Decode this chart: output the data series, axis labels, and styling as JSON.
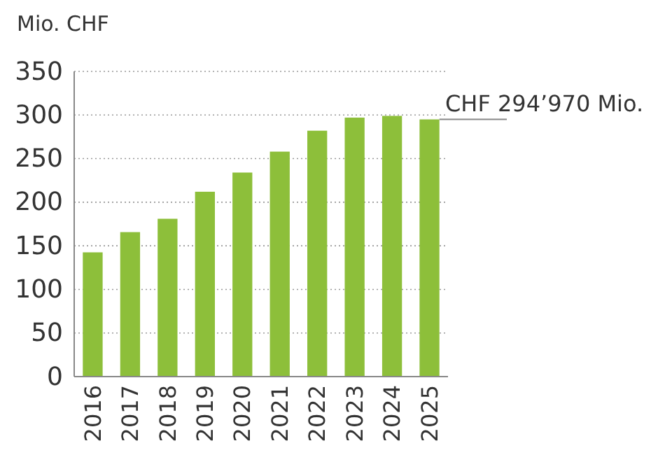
{
  "chart_data": {
    "type": "bar",
    "ylabel": "Mio. CHF",
    "categories": [
      "2016",
      "2017",
      "2018",
      "2019",
      "2020",
      "2021",
      "2022",
      "2023",
      "2024",
      "2025"
    ],
    "values": [
      142.5,
      165.7,
      181,
      212,
      234,
      258,
      282,
      297,
      299,
      294.97
    ],
    "color": "#8dbf3a",
    "ylim": [
      0,
      350
    ],
    "yticks": [
      0,
      50,
      100,
      150,
      200,
      250,
      300,
      350
    ],
    "grid": "y",
    "annotations": [
      {
        "text": "CHF 294’970 Mio.",
        "x": "2025",
        "y": 294.97
      }
    ]
  }
}
